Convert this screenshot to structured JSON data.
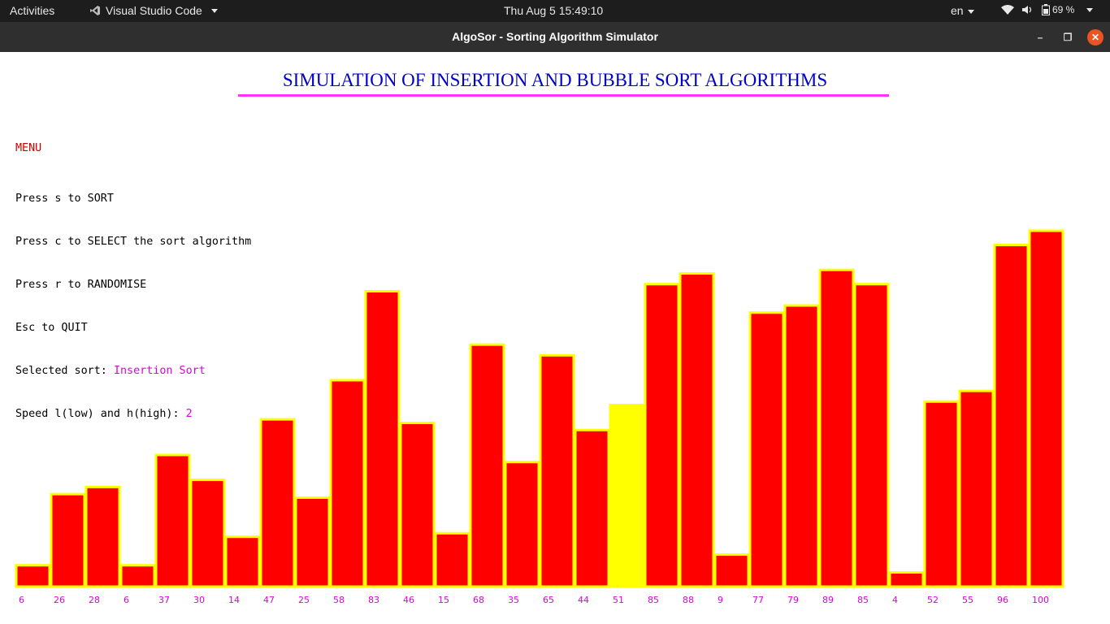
{
  "topbar": {
    "activities": "Activities",
    "app_name": "Visual Studio Code",
    "clock": "Thu Aug 5  15:49:10",
    "lang": "en",
    "battery": "69 %"
  },
  "window": {
    "title": "AlgoSor - Sorting Algorithm Simulator",
    "minimize": "–",
    "maximize": "❐",
    "close": "✕"
  },
  "app": {
    "heading": "SIMULATION OF INSERTION AND BUBBLE SORT ALGORITHMS",
    "menu_title": "MENU",
    "lines": [
      "Press s to SORT",
      "Press c to SELECT the sort algorithm",
      "Press r to RANDOMISE",
      "Esc to QUIT"
    ],
    "selected_label": "Selected sort: ",
    "selected_value": "Insertion Sort",
    "speed_label": "Speed l(low) and h(high): ",
    "speed_value": "2"
  },
  "colors": {
    "bar_fill": "#ff0000",
    "bar_stroke": "#ffff00",
    "highlight_fill": "#ffff00",
    "label": "#dd00dd"
  },
  "chart_data": {
    "type": "bar",
    "categories": [
      "6",
      "26",
      "28",
      "6",
      "37",
      "30",
      "14",
      "47",
      "25",
      "58",
      "83",
      "46",
      "15",
      "68",
      "35",
      "65",
      "44",
      "51",
      "85",
      "88",
      "9",
      "77",
      "79",
      "89",
      "85",
      "4",
      "52",
      "55",
      "96",
      "100"
    ],
    "values": [
      6,
      26,
      28,
      6,
      37,
      30,
      14,
      47,
      25,
      58,
      83,
      46,
      15,
      68,
      35,
      65,
      44,
      51,
      85,
      88,
      9,
      77,
      79,
      89,
      85,
      4,
      52,
      55,
      96,
      100
    ],
    "highlighted_index": 17,
    "ylim": [
      0,
      100
    ]
  }
}
